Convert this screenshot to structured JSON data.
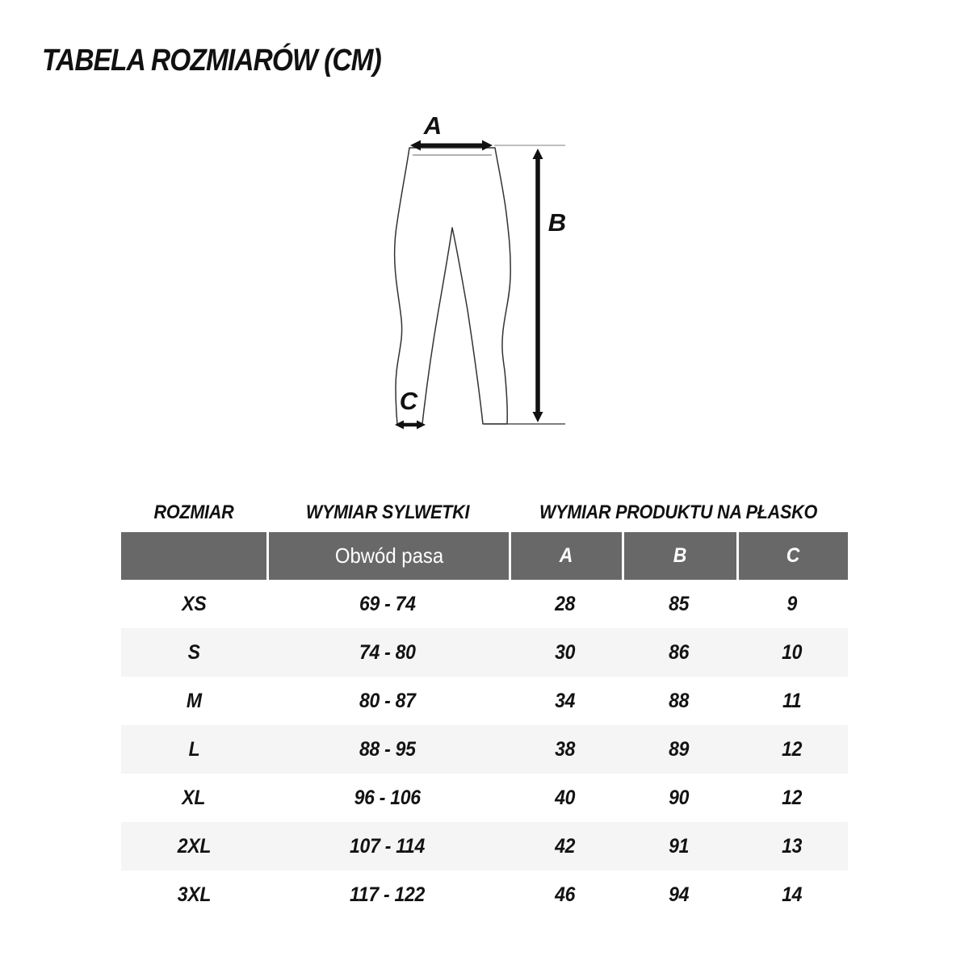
{
  "title": "TABELA ROZMIARÓW (CM)",
  "diagram": {
    "label_a": "A",
    "label_b": "B",
    "label_c": "C"
  },
  "table": {
    "section_headers": {
      "size": "ROZMIAR",
      "body_measure": "WYMIAR SYLWETKI",
      "product_measure": "WYMIAR PRODUKTU NA PŁASKO"
    },
    "header": {
      "size": "",
      "waist": "Obwód pasa",
      "a": "A",
      "b": "B",
      "c": "C"
    },
    "rows": [
      {
        "size": "XS",
        "waist": "69 - 74",
        "a": "28",
        "b": "85",
        "c": "9"
      },
      {
        "size": "S",
        "waist": "74 - 80",
        "a": "30",
        "b": "86",
        "c": "10"
      },
      {
        "size": "M",
        "waist": "80 - 87",
        "a": "34",
        "b": "88",
        "c": "11"
      },
      {
        "size": "L",
        "waist": "88 - 95",
        "a": "38",
        "b": "89",
        "c": "12"
      },
      {
        "size": "XL",
        "waist": "96 - 106",
        "a": "40",
        "b": "90",
        "c": "12"
      },
      {
        "size": "2XL",
        "waist": "107 - 114",
        "a": "42",
        "b": "91",
        "c": "13"
      },
      {
        "size": "3XL",
        "waist": "117 - 122",
        "a": "46",
        "b": "94",
        "c": "14"
      }
    ]
  },
  "colors": {
    "header_bg": "#686868",
    "row_alt_bg": "#f5f5f5",
    "line": "#333333",
    "guide_line": "#999999"
  }
}
